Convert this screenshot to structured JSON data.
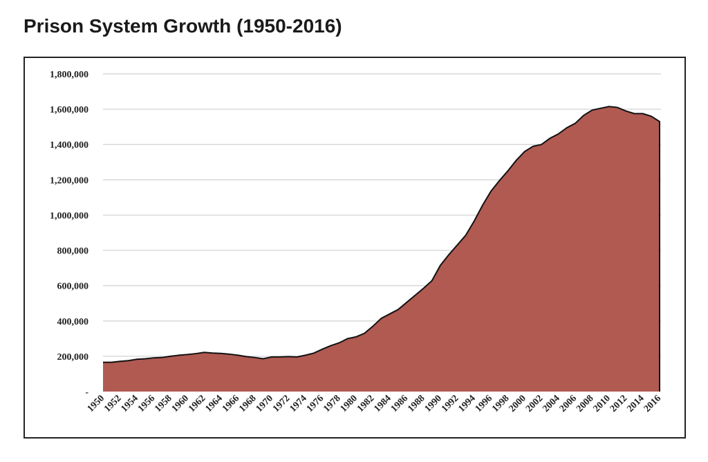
{
  "title": "Prison System Growth (1950-2016)",
  "colors": {
    "area_fill": "#b05a52",
    "area_stroke": "#111111",
    "grid": "#d9d9d9"
  },
  "chart_data": {
    "type": "area",
    "title": "Prison System Growth (1950-2016)",
    "xlabel": "",
    "ylabel": "",
    "grid": true,
    "legend": "none",
    "ylim": [
      0,
      1800000
    ],
    "y_ticks": [
      0,
      200000,
      400000,
      600000,
      800000,
      1000000,
      1200000,
      1400000,
      1600000,
      1800000
    ],
    "y_tick_labels": [
      "-",
      "200,000",
      "400,000",
      "600,000",
      "800,000",
      "1,000,000",
      "1,200,000",
      "1,400,000",
      "1,600,000",
      "1,800,000"
    ],
    "x_tick_labels": [
      "1950",
      "1952",
      "1954",
      "1956",
      "1958",
      "1960",
      "1962",
      "1964",
      "1966",
      "1968",
      "1970",
      "1972",
      "1974",
      "1976",
      "1978",
      "1980",
      "1982",
      "1984",
      "1986",
      "1988",
      "1990",
      "1992",
      "1994",
      "1996",
      "1998",
      "2000",
      "2002",
      "2004",
      "2006",
      "2008",
      "2010",
      "2012",
      "2014",
      "2016"
    ],
    "x": [
      1950,
      1951,
      1952,
      1953,
      1954,
      1955,
      1956,
      1957,
      1958,
      1959,
      1960,
      1961,
      1962,
      1963,
      1964,
      1965,
      1966,
      1967,
      1968,
      1969,
      1970,
      1971,
      1972,
      1973,
      1974,
      1975,
      1976,
      1977,
      1978,
      1979,
      1980,
      1981,
      1982,
      1983,
      1984,
      1985,
      1986,
      1987,
      1988,
      1989,
      1990,
      1991,
      1992,
      1993,
      1994,
      1995,
      1996,
      1997,
      1998,
      1999,
      2000,
      2001,
      2002,
      2003,
      2004,
      2005,
      2006,
      2007,
      2008,
      2009,
      2010,
      2011,
      2012,
      2013,
      2014,
      2015,
      2016
    ],
    "values": [
      166000,
      166000,
      171000,
      175000,
      183000,
      186000,
      191000,
      193000,
      200000,
      206000,
      210000,
      215000,
      222000,
      218000,
      216000,
      212000,
      206000,
      198000,
      193000,
      186000,
      196000,
      196000,
      198000,
      196000,
      206000,
      218000,
      240000,
      260000,
      276000,
      300000,
      310000,
      330000,
      370000,
      415000,
      440000,
      465000,
      505000,
      545000,
      585000,
      628000,
      715000,
      775000,
      830000,
      885000,
      965000,
      1055000,
      1135000,
      1195000,
      1250000,
      1310000,
      1360000,
      1390000,
      1400000,
      1435000,
      1460000,
      1495000,
      1520000,
      1565000,
      1595000,
      1605000,
      1615000,
      1610000,
      1590000,
      1575000,
      1575000,
      1560000,
      1530000
    ]
  }
}
